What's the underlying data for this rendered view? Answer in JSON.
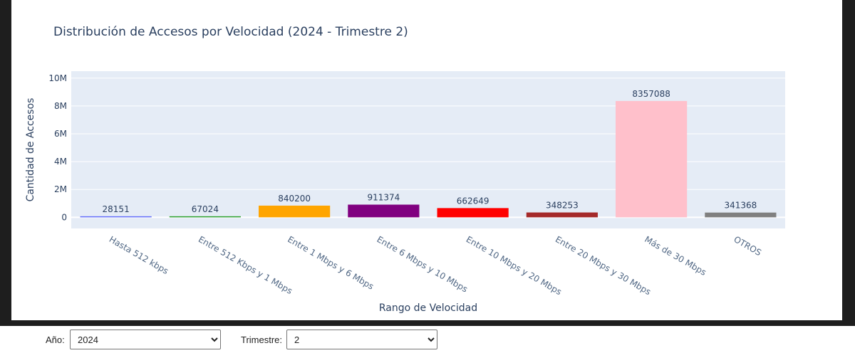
{
  "chart_data": {
    "type": "bar",
    "title": "Distribución de Accesos por Velocidad (2024 - Trimestre 2)",
    "xlabel": "Rango de Velocidad",
    "ylabel": "Cantidad de Accesos",
    "categories": [
      "Hasta 512 kbps",
      "Entre 512 Kbps y 1 Mbps",
      "Entre 1 Mbps y 6 Mbps",
      "Entre 6 Mbps y 10 Mbps",
      "Entre 10 Mbps y 20 Mbps",
      "Entre 20 Mbps y 30 Mbps",
      "Más de 30 Mbps",
      "OTROS"
    ],
    "values": [
      28151,
      67024,
      840200,
      911374,
      662649,
      348253,
      8357088,
      341368
    ],
    "data_labels": [
      "28151",
      "67024",
      "840200",
      "911374",
      "662649",
      "348253",
      "8357088",
      "341368"
    ],
    "colors": [
      "#636efa",
      "#2ca02c",
      "#ffa500",
      "#800080",
      "#ff0000",
      "#a52a2a",
      "#ffc0cb",
      "#808080"
    ],
    "ylim": [
      -800000,
      10500000
    ],
    "yticks": [
      0,
      2000000,
      4000000,
      6000000,
      8000000,
      10000000
    ],
    "ytick_labels": [
      "0",
      "2M",
      "4M",
      "6M",
      "8M",
      "10M"
    ],
    "grid": true,
    "plot_bg": "#e5ecf6"
  },
  "controls": {
    "year_label": "Año:",
    "year_value": "2024",
    "quarter_label": "Trimestre:",
    "quarter_value": "2"
  }
}
